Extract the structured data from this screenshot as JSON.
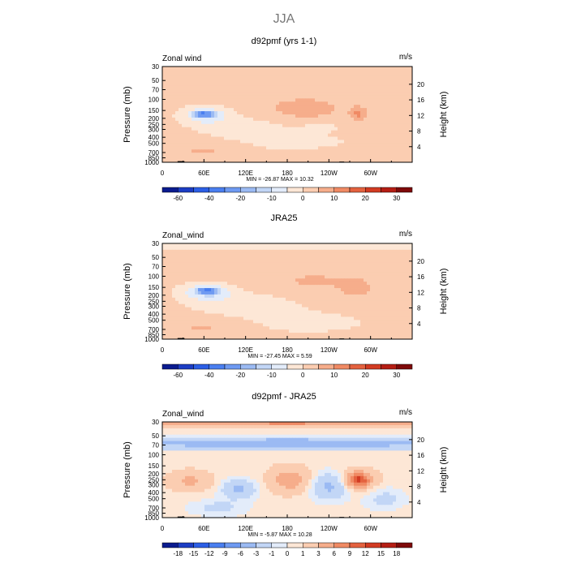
{
  "page_title": "JJA",
  "chart_data": [
    {
      "type": "heatmap",
      "title": "d92pmf (yrs 1-1)",
      "variable_label": "Zonal wind",
      "units": "m/s",
      "ylabel": "Pressure (mb)",
      "y2label": "Height (km)",
      "x_ticks": [
        "0",
        "60E",
        "120E",
        "180",
        "120W",
        "60W"
      ],
      "y_ticks": [
        "30",
        "50",
        "70",
        "100",
        "150",
        "200",
        "250",
        "300",
        "400",
        "500",
        "700",
        "850",
        "1000"
      ],
      "height_ticks": [
        "20",
        "16",
        "12",
        "8",
        "4"
      ],
      "stats": {
        "min_label": "MIN =",
        "min": "-26.87",
        "max_label": "MAX =",
        "max": "10.32"
      },
      "colorbar_labels": [
        "-60",
        "-40",
        "-20",
        "-10",
        "0",
        "10",
        "20",
        "30"
      ],
      "colorbar_colors": [
        "#0a1b8f",
        "#1c3dc4",
        "#2c5fe6",
        "#4a7ff0",
        "#6e9af2",
        "#9bbaf3",
        "#c2d6f6",
        "#e3ecfa",
        "#fde7d6",
        "#fbcdb1",
        "#f6ad8b",
        "#f08a64",
        "#e4623f",
        "#d23b22",
        "#b51e14",
        "#7f0a0a"
      ],
      "anomalies": [
        {
          "x": 60,
          "p": 170,
          "rx": 14,
          "ry": 0.1,
          "amp": -26
        },
        {
          "x": 62,
          "p": 180,
          "rx": 32,
          "ry": 0.3,
          "amp": -11
        },
        {
          "x": 120,
          "p": 300,
          "rx": 70,
          "ry": 0.45,
          "amp": -4
        },
        {
          "x": 205,
          "p": 140,
          "rx": 60,
          "ry": 0.45,
          "amp": 6
        },
        {
          "x": 283,
          "p": 170,
          "rx": 12,
          "ry": 0.25,
          "amp": 9
        },
        {
          "x": 230,
          "p": 270,
          "rx": 28,
          "ry": 0.2,
          "amp": -3
        },
        {
          "x": 60,
          "p": 650,
          "rx": 55,
          "ry": 0.4,
          "amp": 4
        },
        {
          "x": 200,
          "p": 500,
          "rx": 80,
          "ry": 0.35,
          "amp": -3
        },
        {
          "x": 270,
          "p": 750,
          "rx": 80,
          "ry": 0.3,
          "amp": 2
        },
        {
          "x": 180,
          "p": 40,
          "rx": 200,
          "ry": 0.3,
          "amp": 1
        }
      ]
    },
    {
      "type": "heatmap",
      "title": "JRA25",
      "variable_label": "Zonal_wind",
      "units": "m/s",
      "ylabel": "Pressure (mb)",
      "y2label": "Height (km)",
      "x_ticks": [
        "0",
        "60E",
        "120E",
        "180",
        "120W",
        "60W"
      ],
      "y_ticks": [
        "30",
        "50",
        "70",
        "100",
        "150",
        "200",
        "250",
        "300",
        "400",
        "500",
        "700",
        "850",
        "1000"
      ],
      "height_ticks": [
        "20",
        "16",
        "12",
        "8",
        "4"
      ],
      "stats": {
        "min_label": "MIN =",
        "min": "-27.45",
        "max_label": "MAX =",
        "max": "5.59"
      },
      "colorbar_labels": [
        "-60",
        "-40",
        "-20",
        "-10",
        "0",
        "10",
        "20",
        "30"
      ],
      "colorbar_colors": [
        "#0a1b8f",
        "#1c3dc4",
        "#2c5fe6",
        "#4a7ff0",
        "#6e9af2",
        "#9bbaf3",
        "#c2d6f6",
        "#e3ecfa",
        "#fde7d6",
        "#fbcdb1",
        "#f6ad8b",
        "#f08a64",
        "#e4623f",
        "#d23b22",
        "#b51e14",
        "#7f0a0a"
      ],
      "anomalies": [
        {
          "x": 65,
          "p": 170,
          "rx": 14,
          "ry": 0.1,
          "amp": -27
        },
        {
          "x": 65,
          "p": 180,
          "rx": 35,
          "ry": 0.3,
          "amp": -12
        },
        {
          "x": 120,
          "p": 280,
          "rx": 80,
          "ry": 0.5,
          "amp": -4
        },
        {
          "x": 220,
          "p": 120,
          "rx": 90,
          "ry": 0.5,
          "amp": 4
        },
        {
          "x": 280,
          "p": 160,
          "rx": 20,
          "ry": 0.3,
          "amp": 5
        },
        {
          "x": 180,
          "p": 34,
          "rx": 300,
          "ry": 0.15,
          "amp": -4
        },
        {
          "x": 60,
          "p": 650,
          "rx": 60,
          "ry": 0.35,
          "amp": 4
        },
        {
          "x": 210,
          "p": 550,
          "rx": 90,
          "ry": 0.4,
          "amp": -3
        }
      ]
    },
    {
      "type": "heatmap",
      "title": "d92pmf - JRA25",
      "variable_label": "Zonal_wind",
      "units": "m/s",
      "ylabel": "Pressure (mb)",
      "y2label": "Height (km)",
      "x_ticks": [
        "0",
        "60E",
        "120E",
        "180",
        "120W",
        "60W"
      ],
      "y_ticks": [
        "30",
        "50",
        "70",
        "100",
        "150",
        "200",
        "250",
        "300",
        "400",
        "500",
        "700",
        "850",
        "1000"
      ],
      "height_ticks": [
        "20",
        "16",
        "12",
        "8",
        "4"
      ],
      "stats": {
        "min_label": "MIN =",
        "min": "-5.87",
        "max_label": "MAX =",
        "max": "10.28"
      },
      "colorbar_labels": [
        "-18",
        "-15",
        "-12",
        "-9",
        "-6",
        "-3",
        "-1",
        "0",
        "1",
        "3",
        "6",
        "9",
        "12",
        "15",
        "18"
      ],
      "colorbar_colors": [
        "#0a1b8f",
        "#1c3dc4",
        "#2c5fe6",
        "#4a7ff0",
        "#6e9af2",
        "#9bbaf3",
        "#c2d6f6",
        "#e3ecfa",
        "#fde7d6",
        "#fbcdb1",
        "#f6ad8b",
        "#f08a64",
        "#e4623f",
        "#d23b22",
        "#b51e14",
        "#7f0a0a"
      ],
      "anomalies": [
        {
          "x": 180,
          "p": 30,
          "rx": 400,
          "ry": 0.12,
          "amp": 7
        },
        {
          "x": 180,
          "p": 65,
          "rx": 400,
          "ry": 0.22,
          "amp": -5
        },
        {
          "x": 40,
          "p": 260,
          "rx": 30,
          "ry": 0.35,
          "amp": 3
        },
        {
          "x": 110,
          "p": 350,
          "rx": 25,
          "ry": 0.35,
          "amp": -4
        },
        {
          "x": 185,
          "p": 250,
          "rx": 30,
          "ry": 0.45,
          "amp": 4
        },
        {
          "x": 240,
          "p": 320,
          "rx": 28,
          "ry": 0.5,
          "amp": -4
        },
        {
          "x": 283,
          "p": 250,
          "rx": 14,
          "ry": 0.22,
          "amp": 10
        },
        {
          "x": 283,
          "p": 250,
          "rx": 26,
          "ry": 0.4,
          "amp": 3
        },
        {
          "x": 80,
          "p": 700,
          "rx": 40,
          "ry": 0.3,
          "amp": -2
        },
        {
          "x": 320,
          "p": 500,
          "rx": 30,
          "ry": 0.4,
          "amp": -2
        }
      ]
    }
  ]
}
